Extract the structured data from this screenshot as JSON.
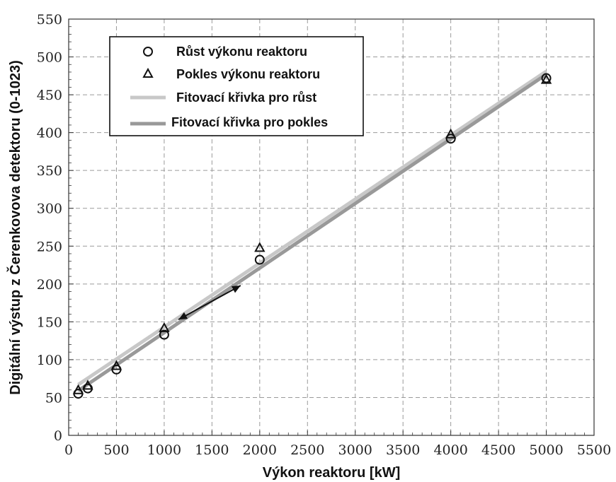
{
  "chart_data": {
    "type": "scatter",
    "xlabel": "Výkon reaktoru [kW]",
    "ylabel": "Digitální výstup z Čerenkovova detektoru (0-1023)",
    "xlim": [
      0,
      5500
    ],
    "ylim": [
      0,
      550
    ],
    "x_ticks": [
      "0",
      "500",
      "1000",
      "1500",
      "2000",
      "2500",
      "3000",
      "3500",
      "4000",
      "4500",
      "5000",
      "5500"
    ],
    "y_ticks": [
      "0",
      "50",
      "100",
      "150",
      "200",
      "250",
      "300",
      "350",
      "400",
      "450",
      "500",
      "550"
    ],
    "grid": true,
    "legend_position": "top-left",
    "series": [
      {
        "name": "Růst výkonu reaktoru",
        "marker": "circle",
        "color": "#111111",
        "points": [
          {
            "x": 100,
            "y": 55
          },
          {
            "x": 200,
            "y": 62
          },
          {
            "x": 500,
            "y": 87
          },
          {
            "x": 1000,
            "y": 133
          },
          {
            "x": 2000,
            "y": 232
          },
          {
            "x": 4000,
            "y": 392
          },
          {
            "x": 5000,
            "y": 472
          }
        ]
      },
      {
        "name": "Pokles výkonu reaktoru",
        "marker": "triangle",
        "color": "#111111",
        "points": [
          {
            "x": 100,
            "y": 60
          },
          {
            "x": 200,
            "y": 66
          },
          {
            "x": 500,
            "y": 92
          },
          {
            "x": 1000,
            "y": 142
          },
          {
            "x": 2000,
            "y": 248
          },
          {
            "x": 4000,
            "y": 398
          },
          {
            "x": 5000,
            "y": 470
          }
        ]
      },
      {
        "name": "Fitovací křivka pro růst",
        "type": "line",
        "color": "#c8c8c8",
        "points": [
          {
            "x": 100,
            "y": 67
          },
          {
            "x": 5000,
            "y": 481
          }
        ]
      },
      {
        "name": "Fitovací křivka pro pokles",
        "type": "line",
        "color": "#999999",
        "points": [
          {
            "x": 100,
            "y": 59
          },
          {
            "x": 5000,
            "y": 477
          }
        ]
      }
    ],
    "annotations": [
      {
        "type": "double-arrow",
        "from": {
          "x": 1150,
          "y": 153
        },
        "to": {
          "x": 1800,
          "y": 198
        }
      }
    ]
  }
}
